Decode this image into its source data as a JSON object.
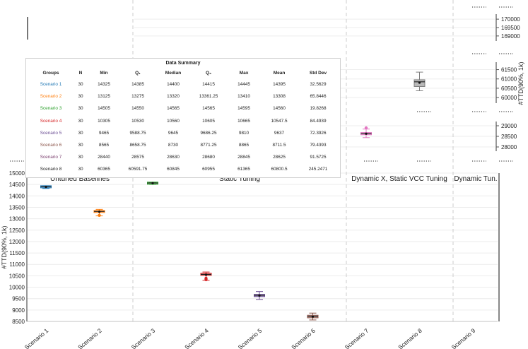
{
  "chart_data": {
    "type": "box",
    "ylabel": "#TTD(90%, 1k)",
    "right_ylabel": "#TTD(90%, 1k)",
    "categories": [
      "Scenario 1",
      "Scenario 2",
      "Scenario 3",
      "Scenario 4",
      "Scenario 5",
      "Scenario 6",
      "Scenario 7",
      "Scenario 8",
      "Scenario 9"
    ],
    "main_axis": {
      "ylim": [
        8500,
        15000
      ],
      "ticks": [
        "15000",
        "14500",
        "14000",
        "13500",
        "13000",
        "12500",
        "12000",
        "11500",
        "11000",
        "10500",
        "10000",
        "9500",
        "9000",
        "8500"
      ]
    },
    "right_axes": [
      {
        "ylim": [
          168700,
          170300
        ],
        "ticks": [
          "170000",
          "169500",
          "169000"
        ]
      },
      {
        "ylim": [
          59700,
          61900
        ],
        "ticks": [
          "61500",
          "61000",
          "60500",
          "60000"
        ]
      },
      {
        "ylim": [
          27800,
          29200
        ],
        "ticks": [
          "29000",
          "28500",
          "28000"
        ]
      }
    ],
    "group_labels": [
      "Untuned Baselines",
      "Static Tuning",
      "Dynamic X, Static VCC Tuning",
      "Dynamic Tun."
    ],
    "colors": [
      "#1f77b4",
      "#ff7f0e",
      "#2ca02c",
      "#d62728",
      "#6a4c93",
      "#8c564b",
      "#e377c2",
      "#7f7f7f",
      "#bcbd22"
    ],
    "boxes": [
      {
        "category": "Scenario 1",
        "min": 14325,
        "q1": 14385,
        "median": 14400,
        "q3": 14415,
        "max": 14445,
        "mean": 14395,
        "axis": 0
      },
      {
        "category": "Scenario 2",
        "min": 13125,
        "q1": 13275,
        "median": 13320,
        "q3": 13361.25,
        "max": 13410,
        "mean": 13308,
        "axis": 0,
        "outliers": [
          13150
        ]
      },
      {
        "category": "Scenario 3",
        "min": 14505,
        "q1": 14550,
        "median": 14565,
        "q3": 14565,
        "max": 14595,
        "mean": 14560,
        "axis": 0
      },
      {
        "category": "Scenario 4",
        "min": 10305,
        "q1": 10530,
        "median": 10560,
        "q3": 10605,
        "max": 10665,
        "mean": 10547.5,
        "axis": 0,
        "outliers": [
          10330,
          10390
        ]
      },
      {
        "category": "Scenario 5",
        "min": 9465,
        "q1": 9588.75,
        "median": 9645,
        "q3": 9686.25,
        "max": 9810,
        "mean": 9637,
        "axis": 0
      },
      {
        "category": "Scenario 6",
        "min": 8565,
        "q1": 8658.75,
        "median": 8730,
        "q3": 8771.25,
        "max": 8865,
        "mean": 8711.5,
        "axis": 0
      },
      {
        "category": "Scenario 7",
        "min": 28440,
        "q1": 28575,
        "median": 28630,
        "q3": 28680,
        "max": 28845,
        "mean": 28625,
        "axis": 3,
        "outliers": [
          28900
        ]
      },
      {
        "category": "Scenario 8",
        "min": 60365,
        "q1": 60591.75,
        "median": 60845,
        "q3": 60955,
        "max": 61365,
        "mean": 60800.5,
        "axis": 2
      }
    ]
  },
  "summary": {
    "title": "Data Summary",
    "headers": [
      "Groups",
      "N",
      "Min",
      "Q₁",
      "Median",
      "Q₃",
      "Max",
      "Mean",
      "Std Dev"
    ],
    "rows": [
      [
        "Scenario 1",
        "30",
        "14325",
        "14385",
        "14400",
        "14415",
        "14445",
        "14395",
        "32.5629"
      ],
      [
        "Scenario 2",
        "30",
        "13125",
        "13275",
        "13320",
        "13361.25",
        "13410",
        "13308",
        "65.8446"
      ],
      [
        "Scenario 3",
        "30",
        "14505",
        "14550",
        "14565",
        "14565",
        "14595",
        "14560",
        "19.8268"
      ],
      [
        "Scenario 4",
        "30",
        "10305",
        "10530",
        "10560",
        "10605",
        "10665",
        "10547.5",
        "84.4939"
      ],
      [
        "Scenario 5",
        "30",
        "9465",
        "9588.75",
        "9645",
        "9686.25",
        "9810",
        "9637",
        "72.3926"
      ],
      [
        "Scenario 6",
        "30",
        "8565",
        "8658.75",
        "8730",
        "8771.25",
        "8865",
        "8711.5",
        "79.4393"
      ],
      [
        "Scenario 7",
        "30",
        "28440",
        "28575",
        "28630",
        "28680",
        "28845",
        "28625",
        "91.5725"
      ],
      [
        "Scenario 8",
        "30",
        "60365",
        "60591.75",
        "60845",
        "60955",
        "61365",
        "60800.5",
        "245.2471"
      ]
    ],
    "row_colors": [
      "#1f77b4",
      "#ff7f0e",
      "#2ca02c",
      "#d62728",
      "#6a4c93",
      "#8c564b",
      "#7b3f6e",
      "#222222"
    ]
  }
}
